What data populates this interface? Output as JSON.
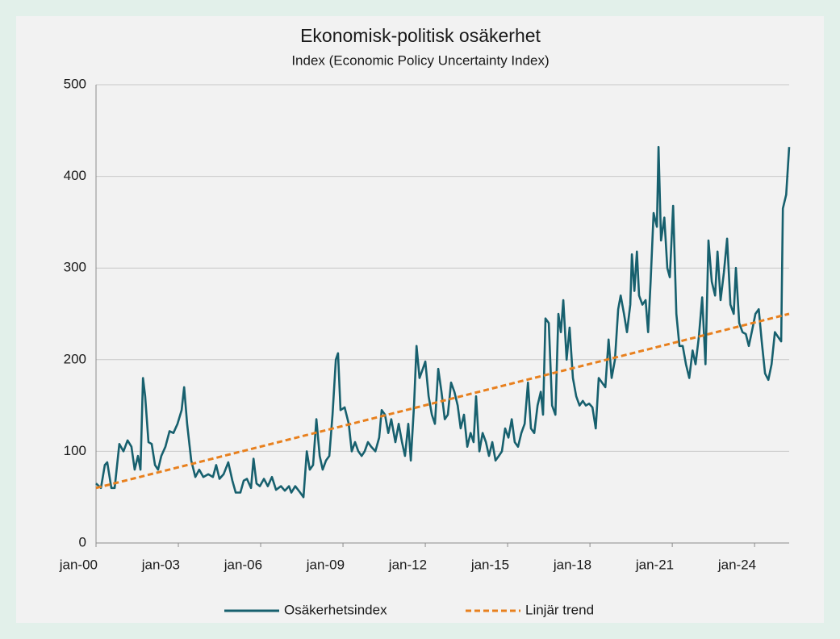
{
  "chart_data": {
    "type": "line",
    "title": "Ekonomisk-politisk osäkerhet",
    "subtitle": "Index (Economic Policy Uncertainty Index)",
    "xlim": [
      2000,
      2025.26
    ],
    "xticks": [
      {
        "value": 2000,
        "label": "jan-00"
      },
      {
        "value": 2003,
        "label": "jan-03"
      },
      {
        "value": 2006,
        "label": "jan-06"
      },
      {
        "value": 2009,
        "label": "jan-09"
      },
      {
        "value": 2012,
        "label": "jan-12"
      },
      {
        "value": 2015,
        "label": "jan-15"
      },
      {
        "value": 2018,
        "label": "jan-18"
      },
      {
        "value": 2021,
        "label": "jan-21"
      },
      {
        "value": 2024,
        "label": "jan-24"
      }
    ],
    "ylim": [
      0,
      500
    ],
    "yticks": [
      0,
      100,
      200,
      300,
      400,
      500
    ],
    "grid": true,
    "legend": "bottom",
    "series": [
      {
        "name": "Osäkerhetsindex",
        "color": "#17606e",
        "dash": false,
        "x": [
          2000.0,
          2000.18,
          2000.32,
          2000.41,
          2000.56,
          2000.68,
          2000.85,
          2001.0,
          2001.15,
          2001.29,
          2001.41,
          2001.53,
          2001.62,
          2001.71,
          2001.79,
          2001.91,
          2002.03,
          2002.15,
          2002.26,
          2002.38,
          2002.53,
          2002.68,
          2002.82,
          2002.97,
          2003.12,
          2003.21,
          2003.32,
          2003.47,
          2003.62,
          2003.76,
          2003.91,
          2004.09,
          2004.26,
          2004.38,
          2004.5,
          2004.65,
          2004.82,
          2004.97,
          2005.09,
          2005.26,
          2005.38,
          2005.5,
          2005.65,
          2005.74,
          2005.85,
          2005.97,
          2006.12,
          2006.26,
          2006.41,
          2006.56,
          2006.74,
          2006.88,
          2007.03,
          2007.12,
          2007.26,
          2007.44,
          2007.56,
          2007.68,
          2007.79,
          2007.91,
          2008.03,
          2008.15,
          2008.26,
          2008.38,
          2008.5,
          2008.62,
          2008.74,
          2008.82,
          2008.91,
          2009.06,
          2009.21,
          2009.32,
          2009.44,
          2009.56,
          2009.68,
          2009.79,
          2009.91,
          2010.03,
          2010.18,
          2010.32,
          2010.41,
          2010.53,
          2010.65,
          2010.76,
          2010.91,
          2011.03,
          2011.15,
          2011.26,
          2011.38,
          2011.47,
          2011.59,
          2011.68,
          2011.79,
          2011.91,
          2012.0,
          2012.12,
          2012.24,
          2012.35,
          2012.47,
          2012.59,
          2012.71,
          2012.82,
          2012.94,
          2013.06,
          2013.18,
          2013.29,
          2013.41,
          2013.53,
          2013.65,
          2013.76,
          2013.85,
          2013.97,
          2014.09,
          2014.21,
          2014.32,
          2014.44,
          2014.56,
          2014.68,
          2014.79,
          2014.91,
          2015.03,
          2015.15,
          2015.26,
          2015.38,
          2015.5,
          2015.62,
          2015.74,
          2015.85,
          2015.97,
          2016.09,
          2016.21,
          2016.29,
          2016.38,
          2016.5,
          2016.62,
          2016.74,
          2016.85,
          2016.94,
          2017.03,
          2017.15,
          2017.26,
          2017.38,
          2017.5,
          2017.62,
          2017.74,
          2017.85,
          2017.97,
          2018.09,
          2018.21,
          2018.32,
          2018.44,
          2018.56,
          2018.68,
          2018.79,
          2018.91,
          2019.03,
          2019.12,
          2019.24,
          2019.35,
          2019.47,
          2019.53,
          2019.62,
          2019.71,
          2019.79,
          2019.91,
          2020.03,
          2020.12,
          2020.21,
          2020.32,
          2020.44,
          2020.5,
          2020.59,
          2020.71,
          2020.82,
          2020.91,
          2021.03,
          2021.15,
          2021.26,
          2021.38,
          2021.5,
          2021.62,
          2021.74,
          2021.85,
          2021.97,
          2022.09,
          2022.21,
          2022.32,
          2022.44,
          2022.56,
          2022.65,
          2022.76,
          2022.88,
          2023.0,
          2023.12,
          2023.24,
          2023.32,
          2023.44,
          2023.56,
          2023.68,
          2023.79,
          2023.91,
          2024.03,
          2024.15,
          2024.26,
          2024.38,
          2024.5,
          2024.62,
          2024.74,
          2024.85,
          2024.97,
          2025.03,
          2025.15,
          2025.26
        ],
        "values": [
          65,
          60,
          85,
          88,
          60,
          60,
          108,
          100,
          112,
          105,
          80,
          95,
          80,
          180,
          160,
          110,
          108,
          85,
          80,
          95,
          105,
          122,
          120,
          130,
          145,
          170,
          130,
          90,
          72,
          80,
          72,
          75,
          72,
          85,
          70,
          75,
          88,
          68,
          55,
          55,
          68,
          70,
          60,
          92,
          65,
          62,
          70,
          62,
          72,
          58,
          62,
          57,
          62,
          55,
          62,
          55,
          50,
          100,
          80,
          85,
          135,
          95,
          80,
          90,
          95,
          140,
          200,
          207,
          145,
          148,
          130,
          100,
          110,
          100,
          95,
          100,
          110,
          105,
          100,
          115,
          145,
          140,
          120,
          135,
          110,
          130,
          110,
          95,
          130,
          90,
          150,
          215,
          180,
          190,
          198,
          160,
          140,
          130,
          190,
          165,
          135,
          140,
          175,
          165,
          150,
          125,
          140,
          105,
          120,
          110,
          160,
          100,
          120,
          110,
          95,
          110,
          90,
          95,
          100,
          125,
          115,
          135,
          110,
          105,
          120,
          130,
          175,
          125,
          120,
          150,
          165,
          140,
          245,
          240,
          150,
          140,
          250,
          230,
          265,
          200,
          235,
          180,
          160,
          150,
          155,
          150,
          152,
          148,
          125,
          180,
          175,
          170,
          222,
          180,
          200,
          255,
          270,
          250,
          230,
          260,
          315,
          275,
          318,
          270,
          260,
          265,
          230,
          285,
          360,
          345,
          432,
          330,
          355,
          300,
          290,
          368,
          250,
          215,
          215,
          195,
          180,
          210,
          195,
          225,
          268,
          195,
          330,
          285,
          270,
          318,
          265,
          295,
          332,
          260,
          250,
          300,
          240,
          230,
          228,
          215,
          232,
          250,
          255,
          220,
          185,
          178,
          195,
          230,
          225,
          220,
          365,
          380,
          432
        ]
      },
      {
        "name": "Linjär trend",
        "color": "#e8801e",
        "dash": true,
        "x": [
          2000,
          2025.26
        ],
        "values": [
          60,
          250
        ]
      }
    ]
  }
}
